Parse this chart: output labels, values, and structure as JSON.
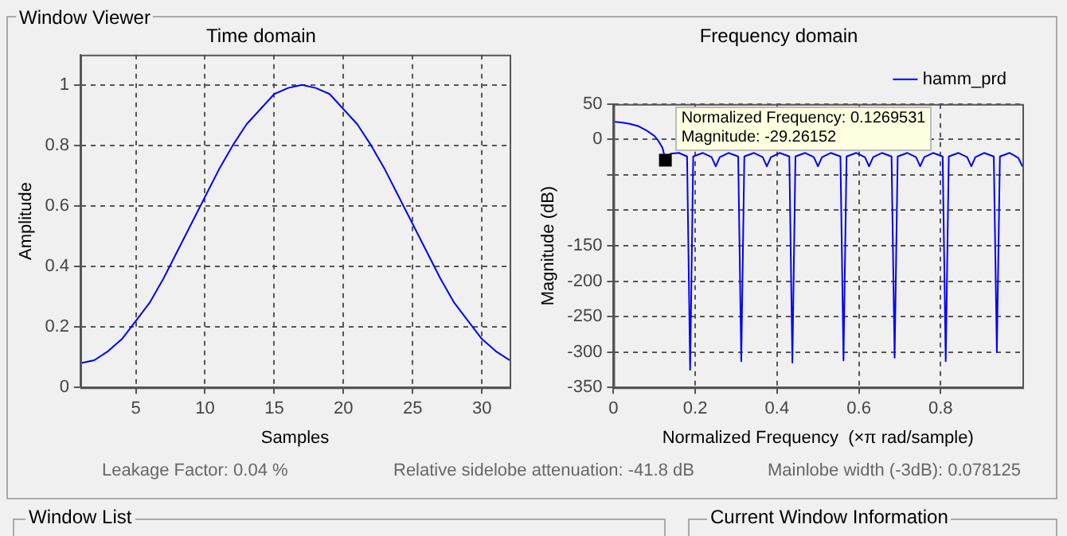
{
  "chart_data": [
    {
      "type": "line",
      "title": "Time domain",
      "xlabel": "Samples",
      "ylabel": "Amplitude",
      "color": "#0000ff",
      "x": [
        1,
        2,
        3,
        4,
        5,
        6,
        7,
        8,
        9,
        10,
        11,
        12,
        13,
        14,
        15,
        16,
        17,
        18,
        19,
        20,
        21,
        22,
        23,
        24,
        25,
        26,
        27,
        28,
        29,
        30,
        31,
        32
      ],
      "values": [
        0.08,
        0.09,
        0.12,
        0.16,
        0.22,
        0.28,
        0.36,
        0.45,
        0.54,
        0.63,
        0.72,
        0.8,
        0.87,
        0.92,
        0.97,
        0.99,
        1,
        0.99,
        0.97,
        0.92,
        0.87,
        0.8,
        0.72,
        0.63,
        0.54,
        0.45,
        0.36,
        0.28,
        0.22,
        0.16,
        0.12,
        0.09
      ],
      "xlim": [
        1,
        32
      ],
      "xticks": [
        5,
        10,
        15,
        20,
        25,
        30
      ],
      "ylim": [
        0,
        1.1
      ],
      "yticks": [
        0,
        0.2,
        0.4,
        0.6,
        0.8,
        1
      ],
      "grid": true,
      "annotations": [
        "Window Viewer",
        "Leakage Factor: 0.04 %",
        "Relative sidelobe attenuation: -41.8 dB",
        "Mainlobe width (-3dB): 0.078125",
        "Window List",
        "Current Window Information"
      ]
    },
    {
      "type": "line",
      "title": "Frequency domain",
      "xlabel": "Normalized Frequency  (×π rad/sample)",
      "ylabel": "Magnitude (dB)",
      "x": [
        0,
        0.02,
        0.04,
        0.06,
        0.08,
        0.1,
        0.11,
        0.12,
        0.127,
        0.14,
        0.16,
        0.18,
        0.1875,
        0.195,
        0.2188,
        0.24,
        0.25,
        0.26,
        0.2813,
        0.305,
        0.3125,
        0.32,
        0.3438,
        0.365,
        0.375,
        0.385,
        0.4063,
        0.43,
        0.4375,
        0.445,
        0.4688,
        0.49,
        0.5,
        0.51,
        0.5313,
        0.555,
        0.5625,
        0.57,
        0.5938,
        0.615,
        0.625,
        0.635,
        0.6563,
        0.68,
        0.6875,
        0.695,
        0.7188,
        0.74,
        0.75,
        0.76,
        0.7813,
        0.805,
        0.8125,
        0.82,
        0.8438,
        0.865,
        0.875,
        0.885,
        0.9063,
        0.93,
        0.9375,
        0.945,
        0.9688,
        0.99,
        1
      ],
      "series": [
        {
          "name": "hamm_prd",
          "color": "#0000ff",
          "values": [
            25,
            24,
            22,
            19,
            13,
            5,
            -2,
            -12,
            -29,
            -20,
            -19,
            -24,
            -325,
            -24,
            -19,
            -25,
            -38,
            -25,
            -19,
            -24,
            -313,
            -24,
            -19,
            -25,
            -38,
            -25,
            -19,
            -24,
            -315,
            -24,
            -19,
            -25,
            -38,
            -25,
            -19,
            -24,
            -312,
            -24,
            -19,
            -25,
            -38,
            -25,
            -19,
            -24,
            -308,
            -24,
            -19,
            -25,
            -38,
            -25,
            -19,
            -24,
            -313,
            -24,
            -19,
            -25,
            -38,
            -25,
            -19,
            -24,
            -300,
            -24,
            -19,
            -26,
            -38
          ]
        }
      ],
      "xlim": [
        0,
        1
      ],
      "xticks": [
        0,
        0.2,
        0.4,
        0.6,
        0.8
      ],
      "ylim": [
        -350,
        50
      ],
      "yticks": [
        -350,
        -300,
        -250,
        -200,
        -150,
        {
          "value": -100,
          "label": null
        },
        {
          "value": -50,
          "label": null
        },
        0,
        50
      ],
      "grid": true,
      "legend": "top right",
      "annotations": [
        {
          "text": "Normalized Frequency: 0.1269531\nMagnitude: -29.26152",
          "x": 0.1269531,
          "y": -29.26152
        }
      ]
    }
  ]
}
